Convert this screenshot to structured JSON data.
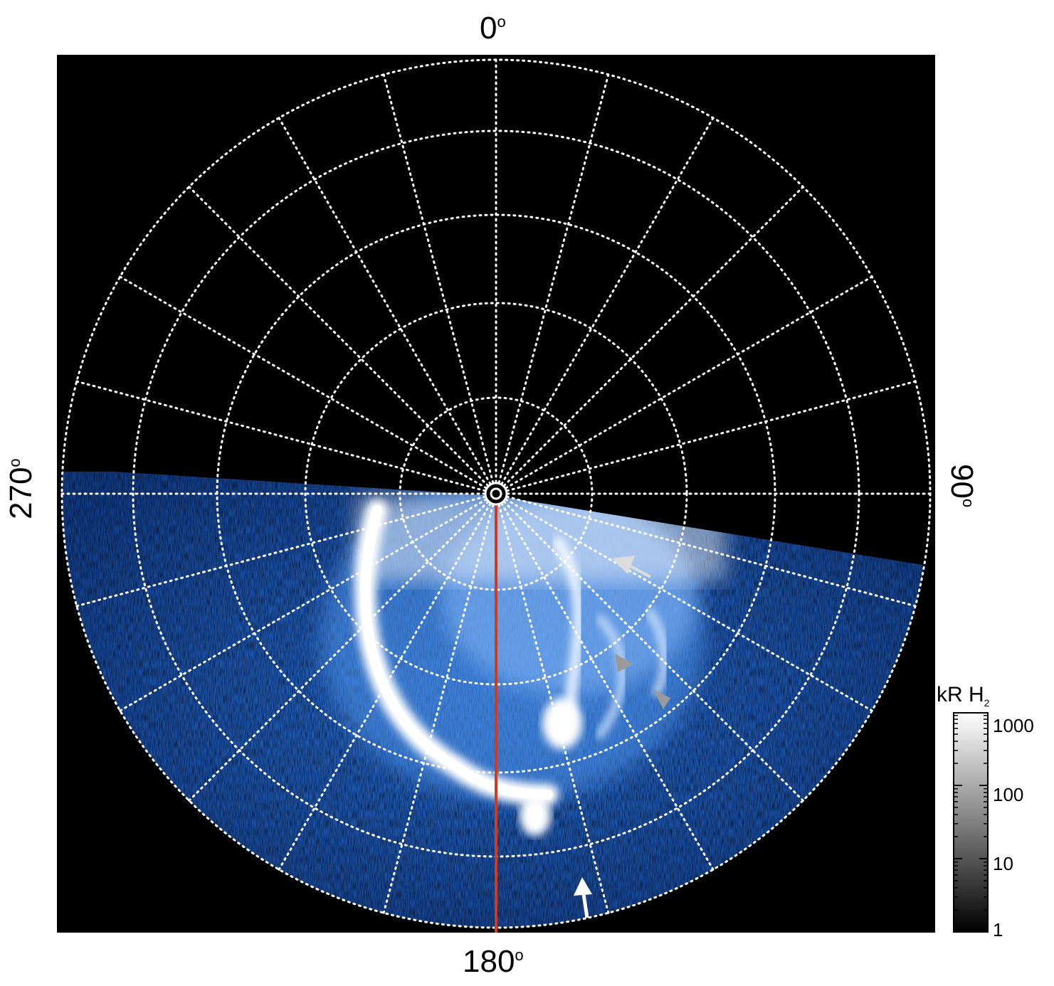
{
  "figure": {
    "azimuth_labels": {
      "top": "0",
      "bottom": "180",
      "left": "270",
      "right": "90",
      "degree_symbol": "o"
    },
    "colorbar": {
      "title_main": "kR H",
      "title_sub": "2",
      "ticks": [
        "1000",
        "100",
        "10",
        "1"
      ],
      "gradient": [
        "#000000",
        "#ffffff"
      ]
    },
    "colors": {
      "background": "#000000",
      "emission_low": "#0a2a66",
      "emission_mid": "#2f7ae0",
      "emission_high": "#ffffff",
      "grid": "#ffffff",
      "meridian_line": "#d03a1e",
      "arrow_light": "#dcdcdc",
      "arrow_gray": "#9a9a9a"
    }
  }
}
